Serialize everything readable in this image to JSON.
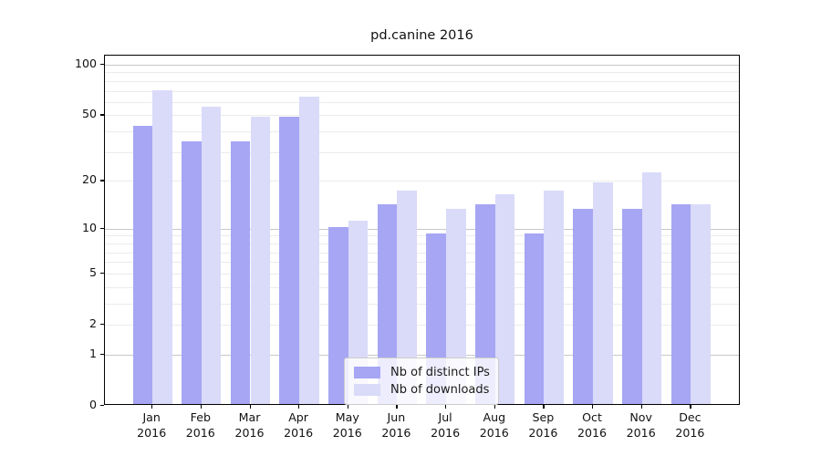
{
  "title": "pd.canine 2016",
  "colors": {
    "series_ips": "#a6a6f4",
    "series_downloads": "#dadaf9",
    "grid_major": "#c8c8c8",
    "grid_minor": "#ebebeb",
    "axis": "#000000",
    "text": "#111111"
  },
  "chart_data": {
    "type": "bar",
    "title": "pd.canine 2016",
    "xlabel": "",
    "ylabel": "",
    "scale": "log10(1+y)",
    "categories": [
      "Jan",
      "Feb",
      "Mar",
      "Apr",
      "May",
      "Jun",
      "Jul",
      "Aug",
      "Sep",
      "Oct",
      "Nov",
      "Dec"
    ],
    "year_label": "2016",
    "series": [
      {
        "name": "Nb of distinct IPs",
        "color": "#a6a6f4",
        "values": [
          42,
          34,
          34,
          48,
          10,
          14,
          9,
          14,
          9,
          13,
          13,
          14
        ]
      },
      {
        "name": "Nb of downloads",
        "color": "#dadaf9",
        "values": [
          69,
          55,
          48,
          63,
          11,
          17,
          13,
          16,
          17,
          19,
          22,
          14
        ]
      }
    ],
    "yticks": [
      0,
      1,
      2,
      5,
      10,
      20,
      50,
      100
    ],
    "ylim": [
      0,
      115
    ],
    "grid_major_at": [
      1,
      10,
      100
    ],
    "grid_minor_at": [
      2,
      3,
      4,
      5,
      6,
      7,
      8,
      9,
      20,
      30,
      40,
      50,
      60,
      70,
      80,
      90
    ],
    "legend_position": "lower center"
  },
  "legend": {
    "item_ips": "Nb of distinct IPs",
    "item_downloads": "Nb of downloads"
  }
}
